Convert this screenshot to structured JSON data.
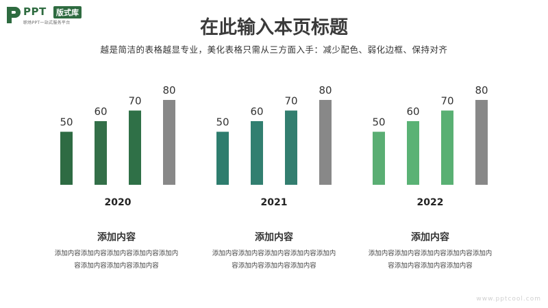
{
  "logo": {
    "name": "PPT",
    "badge": "版式库",
    "tagline": "职场PPT一站式服务平台"
  },
  "header": {
    "title": "在此输入本页标题",
    "subtitle": "越是简洁的表格越显专业，美化表格只需从三方面入手：减少配色、弱化边框、保持对齐"
  },
  "chart_data": {
    "type": "bar",
    "groups": [
      {
        "name": "2020",
        "values": [
          50,
          60,
          70,
          80
        ],
        "colors": [
          "#2e6b43",
          "#336f48",
          "#2f7047",
          "#888888"
        ]
      },
      {
        "name": "2021",
        "values": [
          50,
          60,
          70,
          80
        ],
        "colors": [
          "#2e7d6e",
          "#327f70",
          "#337e6f",
          "#888888"
        ]
      },
      {
        "name": "2022",
        "values": [
          50,
          60,
          70,
          80
        ],
        "colors": [
          "#5aae73",
          "#5ab275",
          "#59b073",
          "#888888"
        ]
      }
    ],
    "ylim": [
      0,
      80
    ],
    "grid": false
  },
  "captions": [
    {
      "title": "添加内容",
      "text": "添加内容添加内容添加内容添加内容添加内容添加内容添加内容添加内容"
    },
    {
      "title": "添加内容",
      "text": "添加内容添加内容添加内容添加内容添加内容添加内容添加内容添加内容"
    },
    {
      "title": "添加内容",
      "text": "添加内容添加内容添加内容添加内容添加内容添加内容添加内容添加内容"
    }
  ],
  "watermark": "www.pptcool.com"
}
